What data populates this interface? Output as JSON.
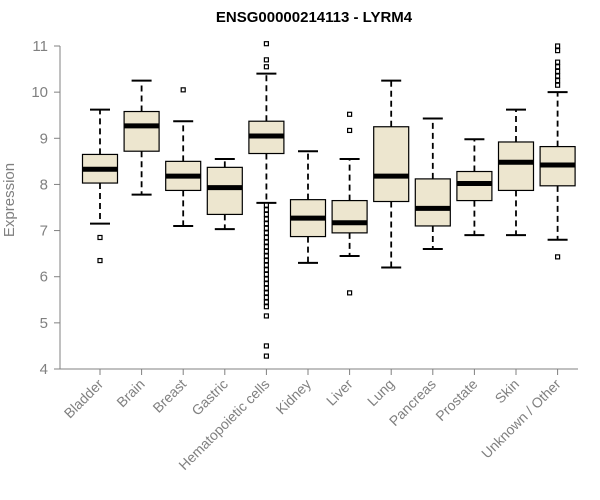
{
  "chart_data": {
    "type": "boxplot",
    "title": "ENSG00000214113 - LYRM4",
    "xlabel": "",
    "ylabel": "Expression",
    "ylim": [
      4,
      11
    ],
    "yticks": [
      4,
      5,
      6,
      7,
      8,
      9,
      10,
      11
    ],
    "grid": false,
    "box_fill": "#ede6cf",
    "box_stroke": "#000000",
    "median_color": "#000000",
    "tick_color": "#808080",
    "categories": [
      "Bladder",
      "Brain",
      "Breast",
      "Gastric",
      "Hematopoietic cells",
      "Kidney",
      "Liver",
      "Lung",
      "Pancreas",
      "Prostate",
      "Skin",
      "Unknown / Other"
    ],
    "series": [
      {
        "category": "Bladder",
        "whisker_low": 7.15,
        "q1": 8.03,
        "median": 8.33,
        "q3": 8.65,
        "whisker_high": 9.62,
        "outliers": [
          6.85,
          6.35
        ]
      },
      {
        "category": "Brain",
        "whisker_low": 7.78,
        "q1": 8.72,
        "median": 9.27,
        "q3": 9.58,
        "whisker_high": 10.25,
        "outliers": []
      },
      {
        "category": "Breast",
        "whisker_low": 7.1,
        "q1": 7.87,
        "median": 8.18,
        "q3": 8.5,
        "whisker_high": 9.37,
        "outliers": [
          10.05
        ]
      },
      {
        "category": "Gastric",
        "whisker_low": 7.03,
        "q1": 7.35,
        "median": 7.93,
        "q3": 8.37,
        "whisker_high": 8.55,
        "outliers": []
      },
      {
        "category": "Hematopoietic cells",
        "whisker_low": 7.6,
        "q1": 8.67,
        "median": 9.05,
        "q3": 9.37,
        "whisker_high": 10.4,
        "outliers": [
          11.05,
          10.7,
          10.55,
          7.55,
          7.45,
          7.35,
          7.25,
          7.15,
          7.05,
          6.95,
          6.85,
          6.75,
          6.65,
          6.55,
          6.45,
          6.35,
          6.25,
          6.15,
          6.05,
          5.95,
          5.85,
          5.75,
          5.65,
          5.55,
          5.45,
          5.35,
          5.15,
          4.5,
          4.28
        ]
      },
      {
        "category": "Kidney",
        "whisker_low": 6.3,
        "q1": 6.87,
        "median": 7.27,
        "q3": 7.67,
        "whisker_high": 8.72,
        "outliers": []
      },
      {
        "category": "Liver",
        "whisker_low": 6.45,
        "q1": 6.95,
        "median": 7.17,
        "q3": 7.65,
        "whisker_high": 8.55,
        "outliers": [
          9.52,
          9.17,
          5.65
        ]
      },
      {
        "category": "Lung",
        "whisker_low": 6.2,
        "q1": 7.63,
        "median": 8.18,
        "q3": 9.25,
        "whisker_high": 10.25,
        "outliers": []
      },
      {
        "category": "Pancreas",
        "whisker_low": 6.6,
        "q1": 7.1,
        "median": 7.48,
        "q3": 8.12,
        "whisker_high": 9.43,
        "outliers": []
      },
      {
        "category": "Prostate",
        "whisker_low": 6.9,
        "q1": 7.65,
        "median": 8.02,
        "q3": 8.28,
        "whisker_high": 8.98,
        "outliers": []
      },
      {
        "category": "Skin",
        "whisker_low": 6.9,
        "q1": 7.87,
        "median": 8.48,
        "q3": 8.92,
        "whisker_high": 9.62,
        "outliers": []
      },
      {
        "category": "Unknown / Other",
        "whisker_low": 6.8,
        "q1": 7.97,
        "median": 8.42,
        "q3": 8.82,
        "whisker_high": 10.0,
        "outliers": [
          11.0,
          10.9,
          10.65,
          10.55,
          10.45,
          10.35,
          10.25,
          10.15,
          6.43
        ]
      }
    ]
  }
}
